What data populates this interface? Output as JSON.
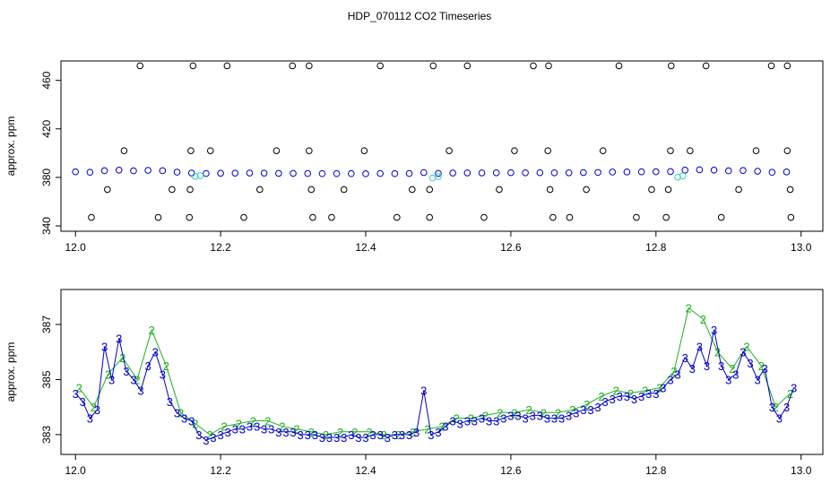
{
  "title": "HDP_070112  CO2 Timeseries",
  "chart_data": [
    {
      "type": "scatter",
      "ylabel": "approx. ppm",
      "xlim": [
        11.98,
        13.03
      ],
      "xticks": [
        {
          "value": 12.0,
          "label": "12.0"
        },
        {
          "value": 12.2,
          "label": "12.2"
        },
        {
          "value": 12.4,
          "label": "12.4"
        },
        {
          "value": 12.6,
          "label": "12.6"
        },
        {
          "value": 12.8,
          "label": "12.8"
        },
        {
          "value": 13.0,
          "label": "13.0"
        }
      ],
      "ylim": [
        335.6,
        476
      ],
      "yticks": [
        340,
        380,
        420,
        460
      ],
      "series": [
        {
          "color": "#0000cc",
          "marker": "circle",
          "x": [
            12.0,
            12.02,
            12.04,
            12.06,
            12.08,
            12.1,
            12.12,
            12.14,
            12.16,
            12.18,
            12.2,
            12.22,
            12.24,
            12.26,
            12.28,
            12.3,
            12.32,
            12.34,
            12.36,
            12.38,
            12.4,
            12.42,
            12.44,
            12.46,
            12.48,
            12.5,
            12.52,
            12.54,
            12.56,
            12.58,
            12.6,
            12.62,
            12.64,
            12.66,
            12.68,
            12.7,
            12.72,
            12.74,
            12.76,
            12.78,
            12.8,
            12.82,
            12.84,
            12.86,
            12.88,
            12.9,
            12.92,
            12.94,
            12.96,
            12.98
          ],
          "values": [
            384.6,
            384.2,
            385.5,
            386.0,
            385.4,
            385.8,
            385.5,
            384.3,
            383.6,
            383.2,
            383.4,
            383.5,
            383.6,
            383.5,
            383.3,
            383.3,
            383.2,
            383.1,
            383.1,
            383.1,
            383.0,
            383.2,
            383.1,
            383.2,
            384.0,
            383.3,
            383.6,
            383.7,
            383.7,
            383.8,
            383.9,
            383.8,
            383.9,
            383.8,
            383.8,
            384.0,
            384.1,
            384.4,
            384.5,
            384.6,
            384.7,
            384.8,
            386.0,
            386.3,
            386.0,
            385.4,
            385.7,
            385.1,
            384.2,
            384.5
          ]
        },
        {
          "color": "#33cccc",
          "marker": "circle",
          "x": [
            12.165,
            12.172,
            12.492,
            12.5,
            12.83,
            12.837
          ],
          "values": [
            380.8,
            381.4,
            379.5,
            380.6,
            380.2,
            381.2
          ]
        },
        {
          "color": "#000000",
          "marker": "circle",
          "x": [
            12.089,
            12.162,
            12.209,
            12.299,
            12.322,
            12.42,
            12.493,
            12.54,
            12.631,
            12.652,
            12.749,
            12.821,
            12.869,
            12.959,
            12.981,
            12.067,
            12.159,
            12.186,
            12.277,
            12.322,
            12.398,
            12.515,
            12.605,
            12.651,
            12.727,
            12.82,
            12.847,
            12.938,
            12.981,
            12.044,
            12.133,
            12.158,
            12.254,
            12.325,
            12.37,
            12.464,
            12.488,
            12.584,
            12.654,
            12.704,
            12.794,
            12.817,
            12.914,
            12.985,
            12.022,
            12.114,
            12.157,
            12.232,
            12.327,
            12.353,
            12.443,
            12.488,
            12.563,
            12.658,
            12.681,
            12.773,
            12.814,
            12.89,
            12.986
          ],
          "values": [
            472,
            472,
            472,
            472,
            472,
            472,
            472,
            472,
            472,
            472,
            472,
            472,
            472,
            472,
            472,
            402,
            402,
            402,
            402,
            402,
            402,
            402,
            402,
            402,
            402,
            402,
            402,
            402,
            402,
            370,
            370,
            370,
            370,
            370,
            370,
            370,
            370,
            370,
            370,
            370,
            370,
            370,
            370,
            370,
            347,
            347,
            347,
            347,
            347,
            347,
            347,
            347,
            347,
            347,
            347,
            347,
            347,
            347,
            347
          ]
        }
      ]
    },
    {
      "type": "line",
      "ylabel": "approx. ppm",
      "xlim": [
        11.98,
        13.03
      ],
      "xticks": [
        {
          "value": 12.0,
          "label": "12.0"
        },
        {
          "value": 12.2,
          "label": "12.2"
        },
        {
          "value": 12.4,
          "label": "12.4"
        },
        {
          "value": 12.6,
          "label": "12.6"
        },
        {
          "value": 12.8,
          "label": "12.8"
        },
        {
          "value": 13.0,
          "label": "13.0"
        }
      ],
      "ylim": [
        382.28,
        388.27
      ],
      "yticks": [
        383,
        385,
        387
      ],
      "series": [
        {
          "color": "#1fb01f",
          "marker": "2",
          "x": [
            12.005,
            12.025,
            12.045,
            12.065,
            12.085,
            12.105,
            12.125,
            12.145,
            12.165,
            12.185,
            12.205,
            12.225,
            12.245,
            12.265,
            12.285,
            12.305,
            12.325,
            12.345,
            12.365,
            12.385,
            12.405,
            12.425,
            12.445,
            12.465,
            12.485,
            12.505,
            12.525,
            12.545,
            12.565,
            12.585,
            12.605,
            12.625,
            12.645,
            12.665,
            12.685,
            12.705,
            12.725,
            12.745,
            12.765,
            12.785,
            12.805,
            12.825,
            12.845,
            12.865,
            12.885,
            12.905,
            12.925,
            12.945,
            12.965,
            12.985
          ],
          "values": [
            384.7,
            384.0,
            385.2,
            385.8,
            385.0,
            386.8,
            385.5,
            383.8,
            383.4,
            383.0,
            383.3,
            383.4,
            383.5,
            383.5,
            383.3,
            383.2,
            383.1,
            383.0,
            383.1,
            383.1,
            383.1,
            383.0,
            383.0,
            383.1,
            383.2,
            383.3,
            383.6,
            383.6,
            383.7,
            383.8,
            383.8,
            383.9,
            383.8,
            383.8,
            383.9,
            384.1,
            384.4,
            384.6,
            384.5,
            384.6,
            384.7,
            385.3,
            387.6,
            387.2,
            386.0,
            385.4,
            386.2,
            385.5,
            384.0,
            384.5
          ]
        },
        {
          "color": "#0000cc",
          "marker": "3",
          "x": [
            12.0,
            12.01,
            12.02,
            12.03,
            12.04,
            12.05,
            12.06,
            12.07,
            12.08,
            12.09,
            12.1,
            12.11,
            12.12,
            12.13,
            12.14,
            12.15,
            12.16,
            12.17,
            12.18,
            12.19,
            12.2,
            12.21,
            12.22,
            12.23,
            12.24,
            12.25,
            12.26,
            12.27,
            12.28,
            12.29,
            12.3,
            12.31,
            12.32,
            12.33,
            12.34,
            12.35,
            12.36,
            12.37,
            12.38,
            12.39,
            12.4,
            12.41,
            12.42,
            12.43,
            12.44,
            12.45,
            12.46,
            12.47,
            12.48,
            12.49,
            12.5,
            12.51,
            12.52,
            12.53,
            12.54,
            12.55,
            12.56,
            12.57,
            12.58,
            12.59,
            12.6,
            12.61,
            12.62,
            12.63,
            12.64,
            12.65,
            12.66,
            12.67,
            12.68,
            12.69,
            12.7,
            12.71,
            12.72,
            12.73,
            12.74,
            12.75,
            12.76,
            12.77,
            12.78,
            12.79,
            12.8,
            12.81,
            12.82,
            12.83,
            12.84,
            12.85,
            12.86,
            12.87,
            12.88,
            12.89,
            12.9,
            12.91,
            12.92,
            12.93,
            12.94,
            12.95,
            12.96,
            12.97,
            12.98,
            12.99
          ],
          "values": [
            384.5,
            384.2,
            383.6,
            383.9,
            386.2,
            385.0,
            386.5,
            385.3,
            385.0,
            384.6,
            385.5,
            386.0,
            385.2,
            384.2,
            383.8,
            383.6,
            383.5,
            383.0,
            382.8,
            382.9,
            383.0,
            383.1,
            383.2,
            383.2,
            383.3,
            383.3,
            383.2,
            383.2,
            383.1,
            383.1,
            383.1,
            383.0,
            383.0,
            383.0,
            382.9,
            382.9,
            382.9,
            382.9,
            383.0,
            382.9,
            382.9,
            383.0,
            383.0,
            382.9,
            383.0,
            383.0,
            383.0,
            383.1,
            384.6,
            383.0,
            383.1,
            383.3,
            383.5,
            383.4,
            383.5,
            383.5,
            383.6,
            383.5,
            383.5,
            383.6,
            383.7,
            383.7,
            383.6,
            383.7,
            383.7,
            383.6,
            383.6,
            383.6,
            383.7,
            383.8,
            383.9,
            383.9,
            384.0,
            384.2,
            384.3,
            384.4,
            384.4,
            384.3,
            384.4,
            384.5,
            384.5,
            384.7,
            385.0,
            385.2,
            385.8,
            385.4,
            386.2,
            385.5,
            386.8,
            385.5,
            385.0,
            385.2,
            386.0,
            385.6,
            385.0,
            385.4,
            384.0,
            383.6,
            384.0,
            384.7
          ]
        }
      ]
    }
  ]
}
